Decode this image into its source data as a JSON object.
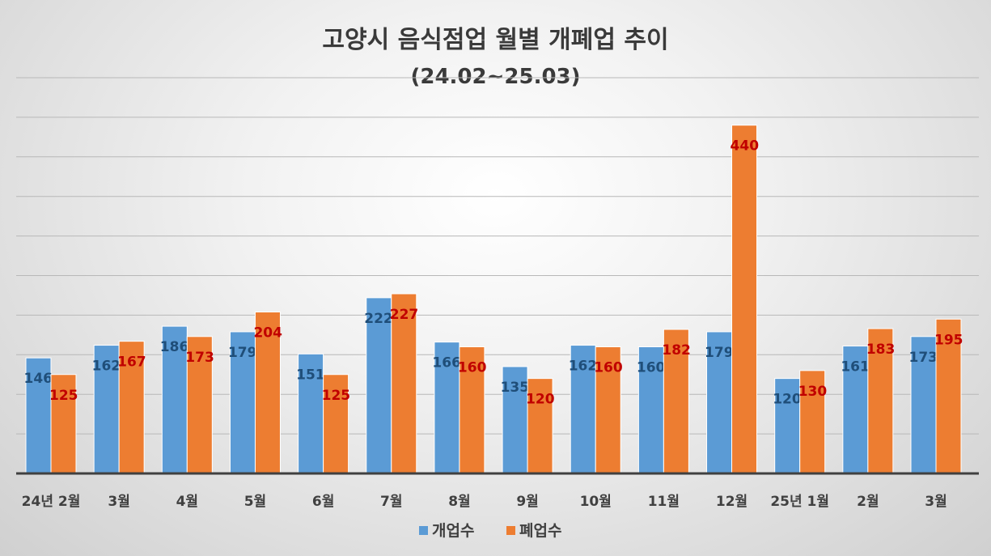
{
  "chart_data": {
    "type": "bar",
    "title": "고양시 음식점업 월별 개폐업 추이",
    "subtitle": "(24.02~25.03)",
    "xlabel": "",
    "ylabel": "",
    "ylim": [
      0,
      500
    ],
    "grid": true,
    "legend_position": "bottom",
    "categories": [
      "24년 2월",
      "3월",
      "4월",
      "5월",
      "6월",
      "7월",
      "8월",
      "9월",
      "10월",
      "11월",
      "12월",
      "25년 1월",
      "2월",
      "3월"
    ],
    "series": [
      {
        "name": "개업수",
        "color": "#5B9BD5",
        "label_color": "#1F4E79",
        "values": [
          146,
          162,
          186,
          179,
          151,
          222,
          166,
          135,
          162,
          160,
          179,
          120,
          161,
          173
        ]
      },
      {
        "name": "폐업수",
        "color": "#ED7D31",
        "label_color": "#C00000",
        "values": [
          125,
          167,
          173,
          204,
          125,
          227,
          160,
          120,
          160,
          182,
          440,
          130,
          183,
          195
        ]
      }
    ]
  }
}
